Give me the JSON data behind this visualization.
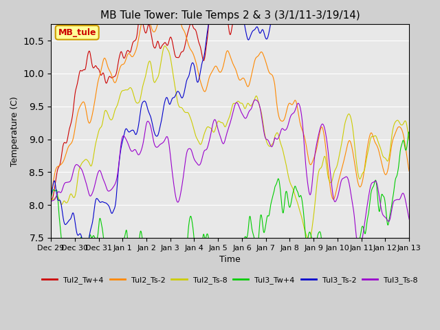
{
  "title": "MB Tule Tower: Tule Temps 2 & 3 (3/1/11-3/19/14)",
  "xlabel": "Time",
  "ylabel": "Temperature (C)",
  "ylim": [
    7.5,
    10.75
  ],
  "yticks": [
    7.5,
    8.0,
    8.5,
    9.0,
    9.5,
    10.0,
    10.5
  ],
  "background_color": "#e8e8e8",
  "plot_bg_color": "#e8e8e8",
  "legend_box_text": "MB_tule",
  "legend_box_color": "#ffff99",
  "legend_box_border": "#cc9900",
  "series_colors": {
    "Tul2_Tw+4": "#cc0000",
    "Tul2_Ts-2": "#ff8800",
    "Tul2_Ts-8": "#cccc00",
    "Tul3_Tw+4": "#00cc00",
    "Tul3_Ts-2": "#0000cc",
    "Tul3_Ts-8": "#9900cc"
  },
  "xtick_labels": [
    "Dec 29",
    "Dec 30",
    "Dec 31",
    "Jan 1",
    "Jan 2",
    "Jan 3",
    "Jan 4",
    "Jan 5",
    "Jan 6",
    "Jan 7",
    "Jan 8",
    "Jan 9",
    "Jan 10",
    "Jan 11",
    "Jan 12",
    "Jan 13"
  ],
  "num_points": 1600
}
